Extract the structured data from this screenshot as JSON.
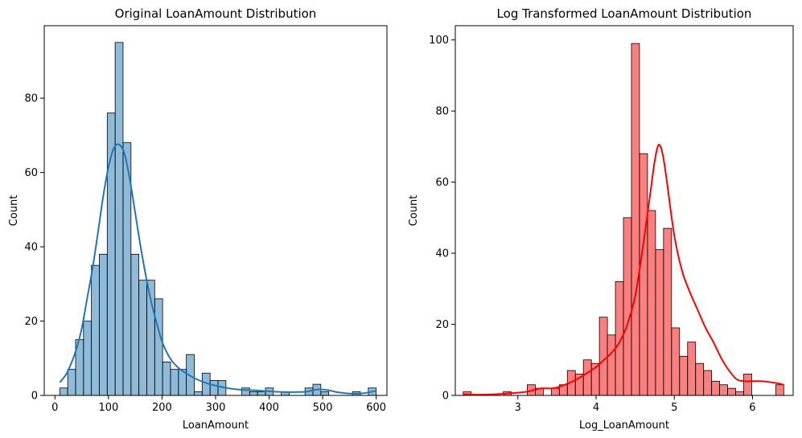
{
  "chart_data": [
    {
      "type": "histogram",
      "title": "Original LoanAmount Distribution",
      "xlabel": "LoanAmount",
      "ylabel": "Count",
      "xlim": [
        -20,
        620
      ],
      "ylim": [
        0,
        99.5
      ],
      "xticks": [
        0,
        100,
        200,
        300,
        400,
        500,
        600
      ],
      "yticks": [
        0,
        20,
        40,
        60,
        80
      ],
      "bar_color": "#1f77b4",
      "bar_fill_opacity": 0.5,
      "kde_color": "#1f77b4",
      "bin_edges": [
        9,
        23.78,
        38.55,
        53.33,
        68.1,
        82.88,
        97.65,
        112.43,
        127.2,
        141.98,
        156.75,
        171.53,
        186.3,
        201.08,
        215.85,
        230.63,
        245.4,
        260.18,
        274.95,
        289.73,
        304.5,
        319.28,
        334.05,
        348.83,
        363.6,
        378.38,
        393.15,
        407.93,
        422.7,
        437.48,
        452.25,
        467.03,
        481.8,
        496.58,
        511.35,
        526.13,
        540.9,
        555.68,
        570.45,
        585.23,
        600
      ],
      "counts": [
        2,
        7,
        15,
        20,
        35,
        38,
        76,
        95,
        68,
        38,
        31,
        31,
        26,
        9,
        7,
        7,
        11,
        1,
        6,
        4,
        4,
        0,
        0,
        2,
        1,
        1,
        2,
        0,
        1,
        0,
        0,
        2,
        3,
        1,
        0,
        0,
        0,
        1,
        0,
        2
      ],
      "kde": {
        "x": [
          9,
          20,
          30,
          40,
          50,
          60,
          70,
          80,
          90,
          100,
          110,
          120,
          130,
          140,
          150,
          160,
          170,
          180,
          190,
          200,
          215,
          230,
          250,
          270,
          290,
          310,
          330,
          350,
          370,
          390,
          410,
          430,
          450,
          470,
          490,
          510,
          530,
          550,
          570,
          585,
          600
        ],
        "y": [
          3.5,
          5.5,
          8.5,
          12.5,
          18,
          26,
          34,
          43.5,
          53.5,
          61.5,
          66.5,
          67.5,
          65,
          58,
          49,
          40,
          32,
          25,
          19.5,
          14.5,
          10,
          7.5,
          5.5,
          4,
          3,
          2.3,
          1.8,
          1.5,
          1.4,
          1.2,
          1,
          0.9,
          0.9,
          1,
          1.6,
          1.4,
          0.8,
          0.5,
          0.5,
          0.8,
          1.2
        ]
      }
    },
    {
      "type": "histogram",
      "title": "Log Transformed LoanAmount Distribution",
      "xlabel": "Log_LoanAmount",
      "ylabel": "Count",
      "xlim": [
        2.2,
        6.52
      ],
      "ylim": [
        0,
        104
      ],
      "xticks": [
        3,
        4,
        5,
        6
      ],
      "yticks": [
        0,
        20,
        40,
        60,
        80,
        100
      ],
      "bar_color": "#ff0000",
      "bar_fill_opacity": 0.5,
      "kde_color": "#ff0000",
      "bin_edges": [
        2.3,
        2.4025,
        2.505,
        2.6075,
        2.71,
        2.8125,
        2.915,
        3.0175,
        3.12,
        3.2225,
        3.325,
        3.4275,
        3.53,
        3.6325,
        3.735,
        3.8375,
        3.94,
        4.0425,
        4.145,
        4.2475,
        4.35,
        4.4525,
        4.555,
        4.6575,
        4.76,
        4.8625,
        4.965,
        5.0675,
        5.17,
        5.2725,
        5.375,
        5.4775,
        5.58,
        5.6825,
        5.785,
        5.8875,
        5.99,
        6.0925,
        6.195,
        6.2975,
        6.4
      ],
      "counts": [
        1,
        0,
        0,
        0,
        0,
        1,
        0,
        0,
        3,
        2,
        0,
        2,
        3,
        7,
        6,
        10,
        9,
        22,
        17,
        32,
        50,
        99,
        68,
        52,
        41,
        47,
        19,
        11,
        15,
        9,
        7,
        4,
        3,
        2,
        1,
        6,
        0,
        0,
        0,
        3
      ],
      "kde": {
        "x": [
          2.3,
          2.5,
          2.7,
          2.9,
          3.1,
          3.2,
          3.3,
          3.45,
          3.6,
          3.75,
          3.9,
          4.0,
          4.1,
          4.2,
          4.3,
          4.4,
          4.5,
          4.6,
          4.7,
          4.75,
          4.8,
          4.85,
          4.9,
          5.0,
          5.1,
          5.2,
          5.3,
          5.4,
          5.5,
          5.6,
          5.7,
          5.8,
          5.9,
          6.0,
          6.1,
          6.2,
          6.3,
          6.4
        ],
        "y": [
          0.3,
          0.2,
          0.3,
          0.6,
          1,
          1.5,
          2,
          2,
          3,
          4.5,
          6.5,
          8,
          10,
          12,
          15,
          20,
          28,
          42,
          58,
          66,
          70.5,
          68,
          61,
          45,
          35,
          29,
          24,
          19,
          15,
          10.5,
          7,
          4.5,
          4,
          4,
          4,
          3.8,
          3.5,
          3
        ]
      }
    }
  ]
}
